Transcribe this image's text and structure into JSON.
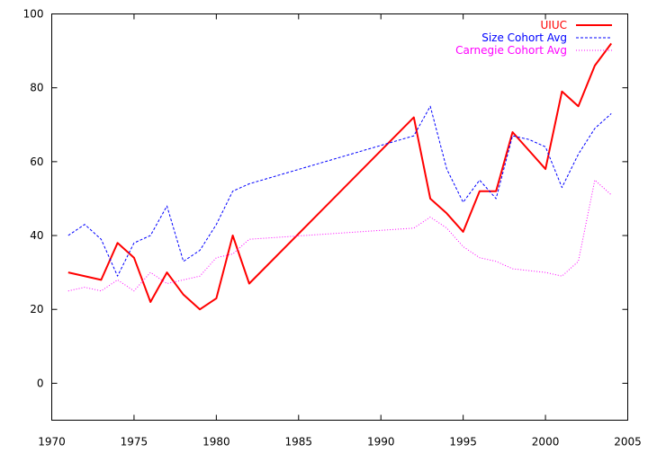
{
  "chart_data": {
    "type": "line",
    "title": "",
    "xlabel": "",
    "ylabel": "",
    "xlim": [
      1970,
      2005
    ],
    "ylim": [
      -10,
      100
    ],
    "xticks": [
      1970,
      1975,
      1980,
      1985,
      1990,
      1995,
      2000,
      2005
    ],
    "yticks": [
      0,
      20,
      40,
      60,
      80,
      100
    ],
    "legend_position": "top-right",
    "grid": false,
    "series": [
      {
        "name": "UIUC",
        "color": "#ff0000",
        "style": "solid",
        "x": [
          1971,
          1973,
          1974,
          1975,
          1976,
          1977,
          1978,
          1979,
          1980,
          1981,
          1982,
          1992,
          1993,
          1994,
          1995,
          1996,
          1997,
          1998,
          1999,
          2000,
          2001,
          2002,
          2003,
          2004
        ],
        "y": [
          30,
          28,
          38,
          34,
          22,
          30,
          24,
          20,
          23,
          40,
          27,
          72,
          50,
          46,
          41,
          52,
          52,
          68,
          63,
          58,
          79,
          75,
          86,
          92
        ]
      },
      {
        "name": "Size Cohort Avg",
        "color": "#0000ff",
        "style": "dashed",
        "x": [
          1971,
          1972,
          1973,
          1974,
          1975,
          1976,
          1977,
          1978,
          1979,
          1980,
          1981,
          1982,
          1992,
          1993,
          1994,
          1995,
          1996,
          1997,
          1998,
          1999,
          2000,
          2001,
          2002,
          2003,
          2004
        ],
        "y": [
          40,
          43,
          39,
          29,
          38,
          40,
          48,
          33,
          36,
          43,
          52,
          54,
          67,
          75,
          58,
          49,
          55,
          50,
          67,
          66,
          64,
          53,
          62,
          69,
          73
        ]
      },
      {
        "name": "Carnegie Cohort Avg",
        "color": "#ff00ff",
        "style": "dotted",
        "x": [
          1971,
          1972,
          1973,
          1974,
          1975,
          1976,
          1977,
          1978,
          1979,
          1980,
          1981,
          1982,
          1992,
          1993,
          1994,
          1995,
          1996,
          1997,
          1998,
          1999,
          2000,
          2001,
          2002,
          2003,
          2004
        ],
        "y": [
          25,
          26,
          25,
          28,
          25,
          30,
          27,
          28,
          29,
          34,
          35,
          39,
          42,
          45,
          42,
          37,
          34,
          33,
          31,
          30.5,
          30,
          29,
          33,
          55,
          51
        ]
      }
    ]
  }
}
